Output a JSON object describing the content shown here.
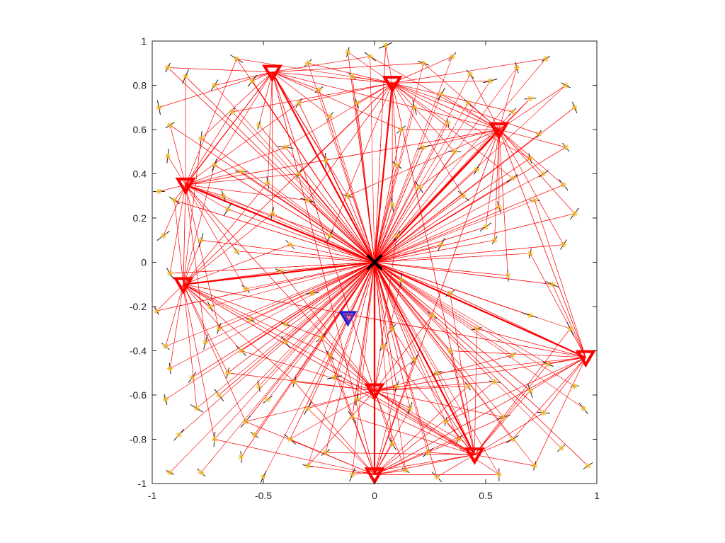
{
  "chart_data": {
    "type": "scatter",
    "title": "",
    "xlabel": "",
    "ylabel": "",
    "xlim": [
      -1,
      1
    ],
    "ylim": [
      -1,
      1
    ],
    "xticks": [
      -1,
      -0.5,
      0,
      0.5,
      1
    ],
    "yticks": [
      1,
      0.8,
      0.6,
      0.4,
      0.2,
      0,
      -0.2,
      -0.4,
      -0.6,
      -0.8,
      -1
    ],
    "xtick_labels": [
      "-1",
      "-0.5",
      "0",
      "0.5",
      "1"
    ],
    "ytick_labels": [
      "1",
      "0.8",
      "0.6",
      "0.4",
      "0.2",
      "0",
      "-0.2",
      "-0.4",
      "-0.6",
      "-0.8",
      "-1"
    ],
    "grid": false,
    "center": {
      "x": 0.0,
      "y": 0.0,
      "marker": "x",
      "color": "#000000"
    },
    "red_nodes": [
      {
        "x": -0.46,
        "y": 0.86
      },
      {
        "x": 0.08,
        "y": 0.81
      },
      {
        "x": 0.56,
        "y": 0.6
      },
      {
        "x": -0.85,
        "y": 0.35
      },
      {
        "x": -0.86,
        "y": -0.1
      },
      {
        "x": 0.95,
        "y": -0.43
      },
      {
        "x": 0.0,
        "y": -0.58
      },
      {
        "x": 0.45,
        "y": -0.87
      },
      {
        "x": 0.0,
        "y": -0.96
      }
    ],
    "blue_node": {
      "x": -0.12,
      "y": -0.25
    },
    "star_points": [
      [
        -0.93,
        0.88
      ],
      [
        -0.85,
        0.84
      ],
      [
        -0.72,
        0.8
      ],
      [
        -0.62,
        0.92
      ],
      [
        -0.55,
        0.82
      ],
      [
        -0.3,
        0.9
      ],
      [
        -0.25,
        0.78
      ],
      [
        -0.12,
        0.95
      ],
      [
        -0.02,
        0.93
      ],
      [
        0.05,
        0.98
      ],
      [
        0.22,
        0.9
      ],
      [
        0.35,
        0.93
      ],
      [
        0.43,
        0.85
      ],
      [
        0.52,
        0.82
      ],
      [
        0.64,
        0.88
      ],
      [
        0.77,
        0.92
      ],
      [
        0.86,
        0.8
      ],
      [
        0.9,
        0.7
      ],
      [
        0.7,
        0.74
      ],
      [
        0.62,
        0.68
      ],
      [
        -0.97,
        0.7
      ],
      [
        -0.92,
        0.62
      ],
      [
        -0.78,
        0.56
      ],
      [
        -0.64,
        0.68
      ],
      [
        -0.52,
        0.62
      ],
      [
        -0.34,
        0.72
      ],
      [
        -0.2,
        0.66
      ],
      [
        -0.08,
        0.72
      ],
      [
        0.18,
        0.7
      ],
      [
        0.33,
        0.63
      ],
      [
        0.42,
        0.72
      ],
      [
        0.74,
        0.58
      ],
      [
        0.86,
        0.52
      ],
      [
        0.7,
        0.47
      ],
      [
        0.76,
        0.4
      ],
      [
        -0.93,
        0.48
      ],
      [
        -0.72,
        0.44
      ],
      [
        -0.6,
        0.41
      ],
      [
        -0.48,
        0.36
      ],
      [
        -0.34,
        0.4
      ],
      [
        -0.22,
        0.46
      ],
      [
        0.1,
        0.44
      ],
      [
        0.22,
        0.52
      ],
      [
        0.36,
        0.5
      ],
      [
        0.46,
        0.42
      ],
      [
        0.62,
        0.38
      ],
      [
        0.85,
        0.35
      ],
      [
        -0.97,
        0.32
      ],
      [
        -0.9,
        0.28
      ],
      [
        -0.66,
        0.24
      ],
      [
        -0.46,
        0.22
      ],
      [
        -0.3,
        0.28
      ],
      [
        -0.12,
        0.3
      ],
      [
        0.08,
        0.26
      ],
      [
        0.2,
        0.34
      ],
      [
        0.4,
        0.3
      ],
      [
        0.56,
        0.25
      ],
      [
        0.72,
        0.28
      ],
      [
        0.9,
        0.22
      ],
      [
        -0.95,
        0.12
      ],
      [
        -0.78,
        0.1
      ],
      [
        -0.62,
        0.05
      ],
      [
        -0.38,
        0.08
      ],
      [
        -0.2,
        0.12
      ],
      [
        0.1,
        0.12
      ],
      [
        0.3,
        0.08
      ],
      [
        0.54,
        0.1
      ],
      [
        0.7,
        0.04
      ],
      [
        0.85,
        0.08
      ],
      [
        -0.92,
        -0.05
      ],
      [
        -0.74,
        -0.2
      ],
      [
        -0.58,
        -0.12
      ],
      [
        -0.42,
        -0.04
      ],
      [
        -0.28,
        -0.14
      ],
      [
        0.12,
        -0.08
      ],
      [
        0.34,
        -0.14
      ],
      [
        0.6,
        -0.06
      ],
      [
        0.8,
        -0.1
      ],
      [
        -0.98,
        -0.22
      ],
      [
        -0.7,
        -0.3
      ],
      [
        -0.56,
        -0.26
      ],
      [
        -0.4,
        -0.28
      ],
      [
        -0.24,
        -0.34
      ],
      [
        0.08,
        -0.3
      ],
      [
        0.26,
        -0.24
      ],
      [
        0.46,
        -0.3
      ],
      [
        0.7,
        -0.24
      ],
      [
        0.88,
        -0.3
      ],
      [
        -0.94,
        -0.38
      ],
      [
        -0.76,
        -0.36
      ],
      [
        -0.6,
        -0.4
      ],
      [
        -0.4,
        -0.36
      ],
      [
        -0.2,
        -0.42
      ],
      [
        0.04,
        -0.38
      ],
      [
        0.18,
        -0.44
      ],
      [
        0.34,
        -0.4
      ],
      [
        0.62,
        -0.42
      ],
      [
        0.78,
        -0.46
      ],
      [
        -0.92,
        -0.48
      ],
      [
        -0.82,
        -0.52
      ],
      [
        -0.66,
        -0.5
      ],
      [
        -0.52,
        -0.56
      ],
      [
        -0.36,
        -0.54
      ],
      [
        -0.18,
        -0.52
      ],
      [
        0.1,
        -0.56
      ],
      [
        0.28,
        -0.5
      ],
      [
        0.54,
        -0.54
      ],
      [
        0.7,
        -0.58
      ],
      [
        0.9,
        -0.56
      ],
      [
        -0.94,
        -0.62
      ],
      [
        -0.8,
        -0.66
      ],
      [
        -0.7,
        -0.6
      ],
      [
        -0.58,
        -0.72
      ],
      [
        -0.48,
        -0.62
      ],
      [
        -0.3,
        -0.66
      ],
      [
        -0.1,
        -0.7
      ],
      [
        0.16,
        -0.66
      ],
      [
        0.32,
        -0.72
      ],
      [
        0.58,
        -0.7
      ],
      [
        0.76,
        -0.68
      ],
      [
        0.94,
        -0.66
      ],
      [
        -0.88,
        -0.78
      ],
      [
        -0.72,
        -0.8
      ],
      [
        -0.54,
        -0.78
      ],
      [
        -0.38,
        -0.8
      ],
      [
        -0.22,
        -0.86
      ],
      [
        0.08,
        -0.82
      ],
      [
        0.24,
        -0.86
      ],
      [
        0.38,
        -0.8
      ],
      [
        0.62,
        -0.8
      ],
      [
        0.84,
        -0.84
      ],
      [
        -0.92,
        -0.95
      ],
      [
        -0.78,
        -0.95
      ],
      [
        -0.6,
        -0.88
      ],
      [
        -0.3,
        -0.92
      ],
      [
        -0.1,
        -0.96
      ],
      [
        0.14,
        -0.94
      ],
      [
        0.28,
        -0.97
      ],
      [
        0.56,
        -0.96
      ],
      [
        0.72,
        -0.92
      ],
      [
        0.96,
        -0.92
      ],
      [
        -0.5,
        -0.97
      ],
      [
        0.42,
        -0.56
      ],
      [
        -0.08,
        -0.62
      ],
      [
        0.12,
        0.6
      ],
      [
        -0.4,
        0.52
      ],
      [
        0.5,
        0.16
      ],
      [
        -0.1,
        0.84
      ],
      [
        0.3,
        0.76
      ],
      [
        -0.68,
        0.3
      ]
    ]
  }
}
